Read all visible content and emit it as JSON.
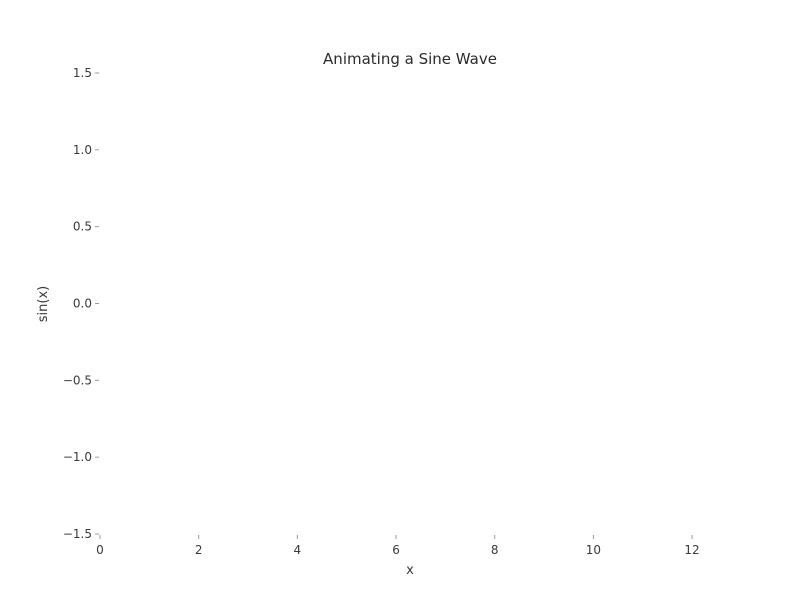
{
  "chart_data": {
    "type": "line",
    "title": "Animating a Sine Wave",
    "xlabel": "x",
    "ylabel": "sin(x)",
    "xlim": [
      0,
      12.566
    ],
    "ylim": [
      -1.5,
      1.5
    ],
    "x_ticks": [
      0,
      2,
      4,
      6,
      8,
      10,
      12
    ],
    "y_ticks": [
      1.5,
      1.0,
      0.5,
      0.0,
      -0.5,
      -1.0,
      -1.5
    ],
    "y_tick_labels": [
      "1.5",
      "1.0",
      "0.5",
      "0.0",
      "−0.5",
      "−1.0",
      "−1.5"
    ],
    "grid": false,
    "series": []
  }
}
